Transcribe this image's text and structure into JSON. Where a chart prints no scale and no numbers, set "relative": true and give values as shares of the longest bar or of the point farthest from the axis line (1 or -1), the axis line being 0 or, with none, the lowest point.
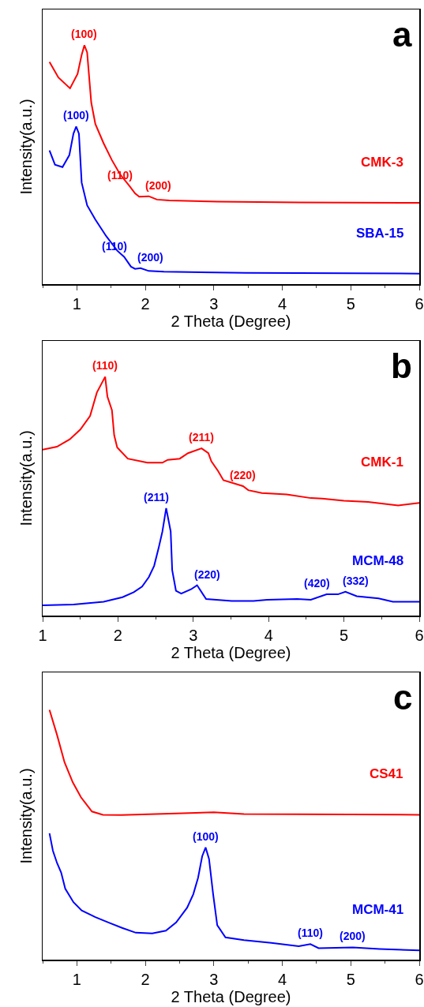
{
  "chart_data": [
    {
      "type": "line",
      "title": "a",
      "xlabel": "2 Theta (Degree)",
      "ylabel": "Intensity(a.u.)",
      "relative": true,
      "xlim": [
        0.5,
        6
      ],
      "xticks": [
        1,
        2,
        3,
        4,
        5,
        6
      ],
      "grid": false,
      "legend": false,
      "marker": "none",
      "line_style": "solid",
      "series": [
        {
          "name": "CMK-3",
          "color": "#ff0000",
          "x": [
            0.6,
            0.73,
            0.9,
            1.01,
            1.07,
            1.11,
            1.15,
            1.21,
            1.27,
            1.39,
            1.51,
            1.63,
            1.77,
            1.85,
            1.91,
            2.05,
            2.17,
            2.35,
            3.06,
            4.25,
            6
          ],
          "values": [
            0.93,
            0.865,
            0.82,
            0.88,
            0.96,
            1.0,
            0.97,
            0.76,
            0.67,
            0.59,
            0.52,
            0.46,
            0.41,
            0.38,
            0.366,
            0.368,
            0.354,
            0.35,
            0.345,
            0.342,
            0.34
          ]
        },
        {
          "name": "SBA-15",
          "color": "#0000ff",
          "x": [
            0.6,
            0.68,
            0.79,
            0.89,
            0.95,
            0.99,
            1.03,
            1.07,
            1.15,
            1.27,
            1.43,
            1.59,
            1.69,
            1.79,
            1.85,
            1.93,
            2.05,
            2.27,
            3.46,
            6
          ],
          "values": [
            0.56,
            0.5,
            0.49,
            0.54,
            0.63,
            0.66,
            0.63,
            0.425,
            0.33,
            0.27,
            0.2,
            0.14,
            0.114,
            0.073,
            0.064,
            0.067,
            0.055,
            0.052,
            0.047,
            0.044
          ]
        }
      ],
      "annotations": [
        {
          "text": "(100)",
          "x": 1.11,
          "y": 1.0
        },
        {
          "text": "(110)",
          "x": 1.77,
          "y": 0.41
        },
        {
          "text": "(200)",
          "x": 2.05,
          "y": 0.368
        },
        {
          "text": "(100)",
          "x": 0.99,
          "y": 0.66
        },
        {
          "text": "(110)",
          "x": 1.69,
          "y": 0.114
        },
        {
          "text": "(200)",
          "x": 1.93,
          "y": 0.067
        }
      ]
    },
    {
      "type": "line",
      "title": "b",
      "xlabel": "2 Theta (Degree)",
      "ylabel": "Intensity(a.u.)",
      "relative": true,
      "xlim": [
        1,
        6
      ],
      "xticks": [
        1,
        2,
        3,
        4,
        5,
        6
      ],
      "grid": false,
      "legend": false,
      "marker": "none",
      "line_style": "solid",
      "series": [
        {
          "name": "CMK-1",
          "color": "#ff0000",
          "x": [
            1.0,
            1.19,
            1.36,
            1.5,
            1.63,
            1.72,
            1.83,
            1.86,
            1.92,
            1.95,
            1.99,
            2.13,
            2.39,
            2.59,
            2.66,
            2.82,
            2.93,
            3.11,
            3.2,
            3.24,
            3.33,
            3.4,
            3.66,
            3.73,
            3.91,
            4.24,
            4.56,
            4.71,
            5.0,
            5.32,
            5.72,
            6.0
          ],
          "values": [
            0.695,
            0.707,
            0.738,
            0.779,
            0.836,
            0.934,
            1.0,
            0.917,
            0.86,
            0.755,
            0.704,
            0.657,
            0.64,
            0.64,
            0.652,
            0.657,
            0.68,
            0.7,
            0.68,
            0.646,
            0.605,
            0.567,
            0.542,
            0.525,
            0.513,
            0.507,
            0.492,
            0.49,
            0.481,
            0.476,
            0.461,
            0.472
          ]
        },
        {
          "name": "MCM-48",
          "color": "#0000ff",
          "x": [
            1.0,
            1.41,
            1.81,
            2.06,
            2.21,
            2.32,
            2.41,
            2.48,
            2.54,
            2.59,
            2.64,
            2.7,
            2.72,
            2.77,
            2.84,
            2.97,
            3.05,
            3.17,
            3.51,
            3.8,
            3.98,
            4.38,
            4.56,
            4.77,
            4.92,
            5.02,
            5.17,
            5.46,
            5.65,
            6.0
          ],
          "values": [
            0.043,
            0.046,
            0.058,
            0.077,
            0.098,
            0.121,
            0.161,
            0.208,
            0.283,
            0.352,
            0.45,
            0.352,
            0.19,
            0.104,
            0.092,
            0.11,
            0.127,
            0.069,
            0.061,
            0.061,
            0.066,
            0.069,
            0.066,
            0.089,
            0.089,
            0.1,
            0.081,
            0.072,
            0.058,
            0.058
          ]
        }
      ],
      "annotations": [
        {
          "text": "(110)",
          "x": 1.83,
          "y": 1.0
        },
        {
          "text": "(211)",
          "x": 3.11,
          "y": 0.7
        },
        {
          "text": "(220)",
          "x": 3.66,
          "y": 0.542
        },
        {
          "text": "(211)",
          "x": 2.64,
          "y": 0.45
        },
        {
          "text": "(220)",
          "x": 3.05,
          "y": 0.127
        },
        {
          "text": "(420)",
          "x": 4.77,
          "y": 0.089
        },
        {
          "text": "(332)",
          "x": 5.02,
          "y": 0.1
        }
      ]
    },
    {
      "type": "line",
      "title": "c",
      "xlabel": "2 Theta (Degree)",
      "ylabel": "Intensity(a.u.)",
      "relative": true,
      "xlim": [
        0.5,
        6
      ],
      "xticks": [
        1,
        2,
        3,
        4,
        5,
        6
      ],
      "grid": false,
      "legend": false,
      "marker": "none",
      "line_style": "solid",
      "series": [
        {
          "name": "CS41",
          "color": "#ff0000",
          "x": [
            0.6,
            0.71,
            0.82,
            0.94,
            1.06,
            1.22,
            1.38,
            1.65,
            2.45,
            3.0,
            3.44,
            6.0
          ],
          "values": [
            1.0,
            0.9,
            0.79,
            0.71,
            0.65,
            0.593,
            0.58,
            0.579,
            0.585,
            0.59,
            0.583,
            0.58
          ]
        },
        {
          "name": "MCM-41",
          "color": "#0000ff",
          "x": [
            0.6,
            0.65,
            0.71,
            0.77,
            0.83,
            0.95,
            1.07,
            1.27,
            1.46,
            1.66,
            1.86,
            2.1,
            2.3,
            2.45,
            2.61,
            2.7,
            2.77,
            2.83,
            2.88,
            2.93,
            2.99,
            3.05,
            3.17,
            3.44,
            3.84,
            4.24,
            4.41,
            4.53,
            5.03,
            5.42,
            6.0
          ],
          "values": [
            0.506,
            0.436,
            0.387,
            0.349,
            0.284,
            0.23,
            0.197,
            0.17,
            0.149,
            0.127,
            0.108,
            0.105,
            0.116,
            0.149,
            0.208,
            0.262,
            0.328,
            0.414,
            0.449,
            0.403,
            0.262,
            0.138,
            0.089,
            0.078,
            0.067,
            0.054,
            0.062,
            0.046,
            0.049,
            0.043,
            0.037
          ]
        }
      ],
      "annotations": [
        {
          "text": "(100)",
          "x": 2.88,
          "y": 0.449
        },
        {
          "text": "(110)",
          "x": 4.41,
          "y": 0.062
        },
        {
          "text": "(200)",
          "x": 5.03,
          "y": 0.049
        }
      ]
    }
  ]
}
